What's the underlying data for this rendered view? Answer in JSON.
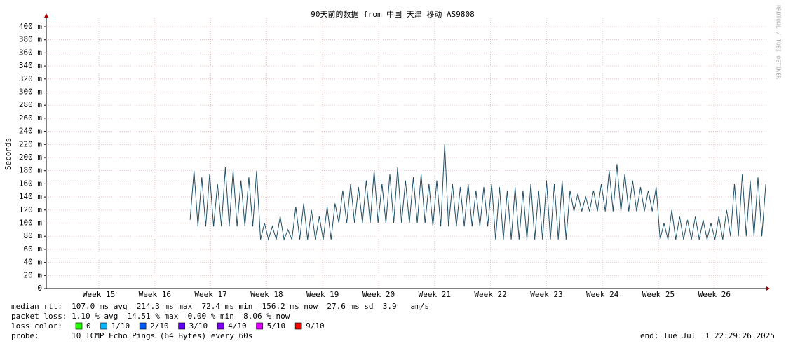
{
  "chart_data": {
    "type": "line",
    "title": "90天前的数据 from 中国 天津 移动 AS9808",
    "ylabel": "Seconds",
    "credit": "RRDTOOL / TOBI OETIKER",
    "ylim": [
      0,
      0.4
    ],
    "yticks": [
      0,
      {
        "value": 0.02,
        "label": "20 m"
      },
      {
        "value": 0.04,
        "label": "40 m"
      },
      {
        "value": 0.06,
        "label": "60 m"
      },
      {
        "value": 0.08,
        "label": "80 m"
      },
      {
        "value": 0.1,
        "label": "100 m"
      },
      {
        "value": 0.12,
        "label": "120 m"
      },
      {
        "value": 0.14,
        "label": "140 m"
      },
      {
        "value": 0.16,
        "label": "160 m"
      },
      {
        "value": 0.18,
        "label": "180 m"
      },
      {
        "value": 0.2,
        "label": "200 m"
      },
      {
        "value": 0.22,
        "label": "220 m"
      },
      {
        "value": 0.24,
        "label": "240 m"
      },
      {
        "value": 0.26,
        "label": "260 m"
      },
      {
        "value": 0.28,
        "label": "280 m"
      },
      {
        "value": 0.3,
        "label": "300 m"
      },
      {
        "value": 0.32,
        "label": "320 m"
      },
      {
        "value": 0.34,
        "label": "340 m"
      },
      {
        "value": 0.36,
        "label": "360 m"
      },
      {
        "value": 0.38,
        "label": "380 m"
      },
      {
        "value": 0.4,
        "label": "400 m"
      }
    ],
    "xlim": [
      14.06,
      26.93
    ],
    "xticks": [
      {
        "value": 15,
        "label": "Week 15"
      },
      {
        "value": 16,
        "label": "Week 16"
      },
      {
        "value": 17,
        "label": "Week 17"
      },
      {
        "value": 18,
        "label": "Week 18"
      },
      {
        "value": 19,
        "label": "Week 19"
      },
      {
        "value": 20,
        "label": "Week 20"
      },
      {
        "value": 21,
        "label": "Week 21"
      },
      {
        "value": 22,
        "label": "Week 22"
      },
      {
        "value": 23,
        "label": "Week 23"
      },
      {
        "value": 24,
        "label": "Week 24"
      },
      {
        "value": 25,
        "label": "Week 25"
      },
      {
        "value": 26,
        "label": "Week 26"
      }
    ],
    "grid": true,
    "x": [
      16.63,
      16.7,
      16.77,
      16.84,
      16.91,
      16.98,
      17.05,
      17.12,
      17.19,
      17.26,
      17.33,
      17.4,
      17.47,
      17.54,
      17.61,
      17.68,
      17.75,
      17.82,
      17.89,
      17.96,
      18.03,
      18.1,
      18.17,
      18.24,
      18.31,
      18.38,
      18.45,
      18.52,
      18.59,
      18.66,
      18.73,
      18.8,
      18.87,
      18.94,
      19.01,
      19.08,
      19.15,
      19.22,
      19.29,
      19.36,
      19.43,
      19.5,
      19.57,
      19.64,
      19.71,
      19.78,
      19.85,
      19.92,
      19.99,
      20.06,
      20.13,
      20.2,
      20.27,
      20.34,
      20.41,
      20.48,
      20.55,
      20.62,
      20.69,
      20.76,
      20.83,
      20.9,
      20.97,
      21.04,
      21.11,
      21.18,
      21.25,
      21.32,
      21.39,
      21.46,
      21.53,
      21.6,
      21.67,
      21.74,
      21.81,
      21.88,
      21.95,
      22.02,
      22.09,
      22.16,
      22.23,
      22.3,
      22.37,
      22.44,
      22.51,
      22.58,
      22.65,
      22.72,
      22.79,
      22.86,
      22.93,
      23.0,
      23.07,
      23.14,
      23.21,
      23.28,
      23.35,
      23.42,
      23.49,
      23.56,
      23.63,
      23.7,
      23.77,
      23.84,
      23.91,
      23.98,
      24.05,
      24.12,
      24.19,
      24.26,
      24.33,
      24.4,
      24.47,
      24.54,
      24.61,
      24.68,
      24.75,
      24.82,
      24.89,
      24.96,
      25.03,
      25.1,
      25.17,
      25.24,
      25.31,
      25.38,
      25.45,
      25.52,
      25.59,
      25.66,
      25.73,
      25.8,
      25.87,
      25.94,
      26.01,
      26.08,
      26.15,
      26.22,
      26.29,
      26.36,
      26.43,
      26.5,
      26.57,
      26.64,
      26.71,
      26.78,
      26.85,
      26.92
    ],
    "series": [
      {
        "color": "#1f4f66",
        "values": [
          0.105,
          0.18,
          0.095,
          0.17,
          0.095,
          0.175,
          0.095,
          0.16,
          0.095,
          0.185,
          0.095,
          0.18,
          0.095,
          0.165,
          0.095,
          0.17,
          0.095,
          0.18,
          0.075,
          0.1,
          0.075,
          0.095,
          0.075,
          0.11,
          0.075,
          0.09,
          0.075,
          0.125,
          0.075,
          0.13,
          0.075,
          0.12,
          0.075,
          0.11,
          0.075,
          0.125,
          0.075,
          0.13,
          0.1,
          0.15,
          0.1,
          0.16,
          0.1,
          0.155,
          0.1,
          0.165,
          0.1,
          0.18,
          0.1,
          0.16,
          0.1,
          0.175,
          0.1,
          0.185,
          0.1,
          0.165,
          0.1,
          0.17,
          0.1,
          0.175,
          0.1,
          0.16,
          0.095,
          0.165,
          0.095,
          0.22,
          0.095,
          0.16,
          0.095,
          0.155,
          0.095,
          0.16,
          0.095,
          0.15,
          0.095,
          0.155,
          0.095,
          0.16,
          0.075,
          0.155,
          0.075,
          0.15,
          0.075,
          0.155,
          0.075,
          0.15,
          0.075,
          0.16,
          0.075,
          0.15,
          0.075,
          0.165,
          0.075,
          0.16,
          0.075,
          0.165,
          0.075,
          0.15,
          0.118,
          0.145,
          0.118,
          0.14,
          0.118,
          0.15,
          0.118,
          0.16,
          0.118,
          0.18,
          0.118,
          0.19,
          0.118,
          0.175,
          0.118,
          0.165,
          0.118,
          0.155,
          0.118,
          0.15,
          0.118,
          0.155,
          0.075,
          0.1,
          0.075,
          0.12,
          0.075,
          0.11,
          0.075,
          0.105,
          0.075,
          0.11,
          0.075,
          0.105,
          0.075,
          0.1,
          0.075,
          0.11,
          0.075,
          0.12,
          0.08,
          0.16,
          0.08,
          0.175,
          0.08,
          0.165,
          0.08,
          0.17,
          0.08,
          0.16
        ]
      }
    ],
    "stats": [
      "median rtt:  107.0 ms avg  214.3 ms max  72.4 ms min  156.2 ms now  27.6 ms sd  3.9   am/s",
      "packet loss: 1.10 % avg  14.51 % max  0.00 % min  8.06 % now"
    ],
    "loss_color_label": "loss color:",
    "loss_colors": [
      {
        "label": "0",
        "color": "#26ff00"
      },
      {
        "label": "1/10",
        "color": "#00b8ff"
      },
      {
        "label": "2/10",
        "color": "#0059ff"
      },
      {
        "label": "3/10",
        "color": "#5e00ff"
      },
      {
        "label": "4/10",
        "color": "#7e00ff"
      },
      {
        "label": "5/10",
        "color": "#dd00ff"
      },
      {
        "label": "9/10",
        "color": "#ff0000"
      }
    ],
    "probe": "probe:       10 ICMP Echo Pings (64 Bytes) every 60s",
    "end": "end: Tue Jul  1 22:29:26 2025"
  }
}
